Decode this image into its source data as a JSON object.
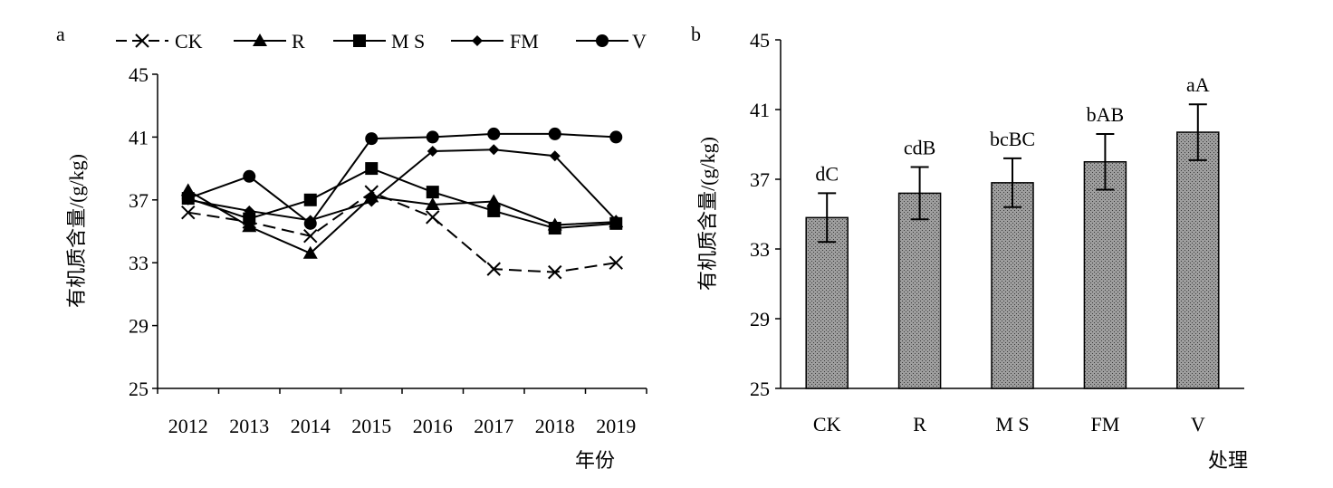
{
  "chart_data": [
    {
      "type": "line",
      "panel_label": "a",
      "xlabel": "年份",
      "ylabel": "有机质含量/(g/kg)",
      "x": [
        "2012",
        "2013",
        "2014",
        "2015",
        "2016",
        "2017",
        "2018",
        "2019"
      ],
      "ylim": [
        25,
        45
      ],
      "yticks": [
        25,
        29,
        33,
        37,
        41,
        45
      ],
      "legend_position": "top",
      "grid": false,
      "series": [
        {
          "name": "CK",
          "marker": "x",
          "dashed": true,
          "values": [
            36.2,
            35.6,
            34.7,
            37.5,
            35.9,
            32.6,
            32.4,
            33.0
          ]
        },
        {
          "name": "R",
          "marker": "triangle",
          "dashed": false,
          "values": [
            37.6,
            35.3,
            33.6,
            37.2,
            36.7,
            36.9,
            35.4,
            35.6
          ]
        },
        {
          "name": "M S",
          "marker": "square",
          "dashed": false,
          "values": [
            37.1,
            35.8,
            37.0,
            39.0,
            37.5,
            36.3,
            35.2,
            35.5
          ]
        },
        {
          "name": "FM",
          "marker": "diamond",
          "dashed": false,
          "values": [
            37.0,
            36.3,
            35.7,
            36.9,
            40.1,
            40.2,
            39.8,
            35.7
          ]
        },
        {
          "name": "V",
          "marker": "circle",
          "dashed": false,
          "values": [
            37.1,
            38.5,
            35.5,
            40.9,
            41.0,
            41.2,
            41.2,
            41.0
          ]
        }
      ]
    },
    {
      "type": "bar",
      "panel_label": "b",
      "xlabel": "处理",
      "ylabel": "有机质含量/(g/kg)",
      "categories": [
        "CK",
        "R",
        "M S",
        "FM",
        "V"
      ],
      "values": [
        34.8,
        36.2,
        36.8,
        38.0,
        39.7
      ],
      "errors": [
        1.4,
        1.5,
        1.4,
        1.6,
        1.6
      ],
      "significance": [
        "dC",
        "cdB",
        "bcBC",
        "bAB",
        "aA"
      ],
      "ylim": [
        25,
        45
      ],
      "yticks": [
        25,
        29,
        33,
        37,
        41,
        45
      ],
      "grid": false,
      "bar_color": "#9e9e9e"
    }
  ]
}
